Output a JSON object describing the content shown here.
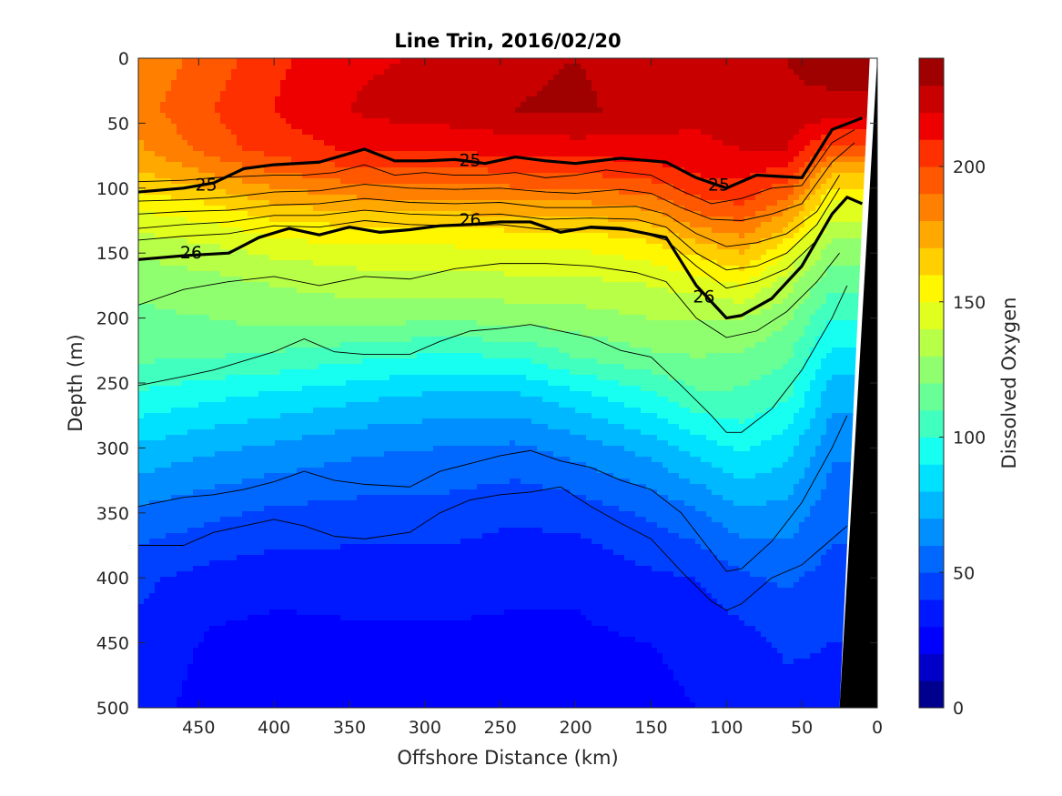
{
  "chart_data": {
    "type": "heatmap",
    "title": "Line Trin, 2016/02/20",
    "xlabel": "Offshore Distance (km)",
    "ylabel": "Depth (m)",
    "colorbar_label": "Dissolved Oxygen",
    "xlim": [
      490,
      0
    ],
    "ylim": [
      500,
      0
    ],
    "x_reversed": true,
    "y_reversed": true,
    "x_ticks": [
      "450",
      "400",
      "350",
      "300",
      "250",
      "200",
      "150",
      "100",
      "50",
      "0"
    ],
    "x_tick_values": [
      450,
      400,
      350,
      300,
      250,
      200,
      150,
      100,
      50,
      0
    ],
    "y_ticks": [
      "0",
      "50",
      "100",
      "150",
      "200",
      "250",
      "300",
      "350",
      "400",
      "450",
      "500"
    ],
    "y_tick_values": [
      0,
      50,
      100,
      150,
      200,
      250,
      300,
      350,
      400,
      450,
      500
    ],
    "colorbar_ticks": [
      "0",
      "50",
      "100",
      "150",
      "200"
    ],
    "colorbar_tick_values": [
      0,
      50,
      100,
      150,
      200
    ],
    "colorbar_range": [
      0,
      240
    ],
    "colorbar_step": 10,
    "colormap": [
      "#00008f",
      "#0000c8",
      "#0000ff",
      "#0018ff",
      "#0040ff",
      "#0068ff",
      "#008fff",
      "#00b8ff",
      "#00e0ff",
      "#17fff0",
      "#40ffbf",
      "#68ff97",
      "#8fff6f",
      "#b8ff47",
      "#e0ff1f",
      "#fff700",
      "#ffcf00",
      "#ffa800",
      "#ff8000",
      "#ff5800",
      "#ff3000",
      "#ef0000",
      "#c80000",
      "#9f0000"
    ],
    "grid": false,
    "oxygen_profiles": {
      "distances_km": [
        490,
        440,
        400,
        340,
        290,
        240,
        200,
        150,
        120,
        90,
        60,
        30
      ],
      "depths_m": [
        0,
        40,
        70,
        90,
        110,
        130,
        150,
        175,
        200,
        230,
        260,
        300,
        350,
        400,
        450,
        500
      ],
      "values": [
        [
          182,
          186,
          178,
          168,
          155,
          142,
          132,
          122,
          118,
          112,
          98,
          78,
          58,
          42,
          38,
          36
        ],
        [
          195,
          200,
          195,
          180,
          162,
          148,
          136,
          126,
          120,
          110,
          92,
          72,
          52,
          36,
          28,
          24
        ],
        [
          208,
          210,
          205,
          188,
          172,
          156,
          142,
          130,
          124,
          108,
          88,
          68,
          48,
          34,
          26,
          22
        ],
        [
          218,
          222,
          212,
          196,
          178,
          160,
          146,
          134,
          124,
          102,
          82,
          62,
          46,
          34,
          28,
          24
        ],
        [
          222,
          225,
          212,
          195,
          178,
          160,
          146,
          134,
          122,
          98,
          78,
          60,
          46,
          34,
          28,
          26
        ],
        [
          228,
          230,
          214,
          198,
          180,
          162,
          148,
          136,
          124,
          100,
          78,
          58,
          42,
          32,
          28,
          26
        ],
        [
          230,
          232,
          215,
          198,
          180,
          162,
          148,
          136,
          126,
          110,
          86,
          64,
          44,
          32,
          28,
          26
        ],
        [
          226,
          226,
          216,
          204,
          186,
          168,
          154,
          140,
          130,
          118,
          98,
          74,
          52,
          38,
          30,
          28
        ],
        [
          222,
          222,
          218,
          210,
          198,
          180,
          162,
          144,
          130,
          120,
          108,
          84,
          58,
          40,
          32,
          30
        ],
        [
          230,
          226,
          220,
          212,
          202,
          186,
          170,
          150,
          130,
          118,
          108,
          92,
          68,
          48,
          36,
          32
        ],
        [
          230,
          228,
          220,
          204,
          188,
          170,
          150,
          134,
          122,
          112,
          102,
          84,
          66,
          52,
          42,
          36
        ],
        [
          236,
          226,
          196,
          168,
          150,
          136,
          124,
          112,
          100,
          86,
          74,
          62,
          54,
          46,
          40,
          36
        ]
      ]
    },
    "isopycnals": [
      {
        "label": "25",
        "x": [
          490,
          460,
          440,
          420,
          400,
          370,
          340,
          320,
          300,
          280,
          260,
          240,
          220,
          200,
          170,
          140,
          120,
          100,
          80,
          50,
          30,
          10
        ],
        "y": [
          103,
          100,
          96,
          85,
          82,
          80,
          70,
          79,
          79,
          78,
          81,
          76,
          79,
          81,
          77,
          80,
          92,
          100,
          90,
          92,
          55,
          46
        ]
      },
      {
        "label": "26",
        "x": [
          490,
          460,
          430,
          410,
          390,
          370,
          350,
          330,
          310,
          290,
          270,
          250,
          230,
          210,
          190,
          170,
          140,
          120,
          100,
          90,
          70,
          50,
          30,
          20,
          10
        ],
        "y": [
          155,
          152,
          150,
          138,
          131,
          136,
          130,
          134,
          132,
          129,
          128,
          126,
          126,
          134,
          130,
          131,
          138,
          175,
          200,
          198,
          185,
          160,
          120,
          107,
          112
        ]
      }
    ],
    "thin_isolines": [
      {
        "x": [
          490,
          460,
          450,
          440,
          420,
          400,
          380,
          360,
          340,
          320,
          300,
          280,
          260,
          240,
          220,
          200,
          180,
          150,
          130,
          110,
          90,
          70,
          50,
          30,
          15
        ],
        "y": [
          95,
          94,
          93,
          92,
          91,
          90,
          90,
          88,
          82,
          90,
          88,
          90,
          90,
          88,
          92,
          90,
          86,
          90,
          102,
          112,
          108,
          100,
          98,
          65,
          55
        ]
      },
      {
        "x": [
          490,
          460,
          430,
          400,
          370,
          340,
          310,
          280,
          250,
          220,
          200,
          170,
          150,
          130,
          110,
          90,
          70,
          50,
          30,
          15
        ],
        "y": [
          110,
          109,
          107,
          103,
          102,
          97,
          100,
          101,
          100,
          103,
          104,
          101,
          104,
          115,
          124,
          125,
          120,
          112,
          80,
          65
        ]
      },
      {
        "x": [
          490,
          460,
          430,
          400,
          370,
          340,
          310,
          280,
          250,
          220,
          190,
          160,
          140,
          120,
          100,
          80,
          60,
          40,
          25
        ],
        "y": [
          120,
          118,
          117,
          113,
          112,
          108,
          111,
          112,
          111,
          115,
          115,
          114,
          120,
          135,
          145,
          142,
          135,
          118,
          90
        ]
      },
      {
        "x": [
          490,
          460,
          430,
          400,
          370,
          340,
          310,
          280,
          250,
          220,
          190,
          160,
          140,
          120,
          100,
          80,
          60,
          40,
          25
        ],
        "y": [
          131,
          128,
          126,
          121,
          121,
          117,
          120,
          121,
          120,
          124,
          123,
          124,
          130,
          150,
          163,
          160,
          150,
          128,
          100
        ]
      },
      {
        "x": [
          490,
          460,
          430,
          400,
          370,
          340,
          310,
          280,
          250,
          220,
          190,
          160,
          140,
          120,
          100,
          80,
          60,
          40,
          25
        ],
        "y": [
          140,
          137,
          135,
          129,
          130,
          125,
          128,
          129,
          128,
          132,
          131,
          133,
          140,
          160,
          177,
          172,
          162,
          140,
          112
        ]
      },
      {
        "x": [
          490,
          460,
          430,
          400,
          370,
          340,
          310,
          280,
          250,
          220,
          190,
          160,
          140,
          120,
          100,
          80,
          60,
          40,
          25
        ],
        "y": [
          190,
          178,
          172,
          168,
          175,
          168,
          170,
          162,
          158,
          158,
          160,
          165,
          172,
          200,
          215,
          210,
          195,
          172,
          150
        ]
      },
      {
        "x": [
          490,
          460,
          440,
          420,
          400,
          380,
          360,
          340,
          310,
          290,
          270,
          250,
          230,
          210,
          190,
          170,
          150,
          130,
          110,
          100,
          90,
          70,
          50,
          30,
          20
        ],
        "y": [
          252,
          245,
          240,
          233,
          226,
          216,
          226,
          228,
          228,
          218,
          210,
          208,
          205,
          210,
          215,
          225,
          230,
          252,
          275,
          288,
          288,
          270,
          240,
          200,
          175
        ]
      },
      {
        "x": [
          490,
          460,
          440,
          420,
          400,
          380,
          360,
          340,
          310,
          290,
          270,
          250,
          230,
          210,
          190,
          170,
          150,
          130,
          110,
          100,
          90,
          70,
          50,
          30,
          20
        ],
        "y": [
          345,
          338,
          336,
          332,
          326,
          318,
          325,
          328,
          330,
          318,
          312,
          306,
          302,
          310,
          315,
          325,
          332,
          350,
          380,
          395,
          393,
          372,
          342,
          300,
          275
        ]
      },
      {
        "x": [
          490,
          460,
          440,
          420,
          400,
          380,
          360,
          340,
          310,
          290,
          270,
          250,
          230,
          210,
          190,
          170,
          150,
          130,
          110,
          100,
          90,
          70,
          50,
          30,
          20
        ],
        "y": [
          375,
          375,
          365,
          360,
          355,
          360,
          368,
          370,
          365,
          350,
          340,
          336,
          334,
          330,
          345,
          358,
          370,
          395,
          418,
          425,
          420,
          400,
          390,
          370,
          360
        ]
      }
    ],
    "contour_labels": [
      {
        "text": "25",
        "x": 270,
        "y": 78
      },
      {
        "text": "25",
        "x": 445,
        "y": 97
      },
      {
        "text": "25",
        "x": 105,
        "y": 97
      },
      {
        "text": "26",
        "x": 270,
        "y": 124
      },
      {
        "text": "26",
        "x": 455,
        "y": 149
      },
      {
        "text": "26",
        "x": 115,
        "y": 183
      }
    ],
    "bathymetry": {
      "x": [
        0,
        0,
        25,
        5
      ],
      "y": [
        0,
        500,
        500,
        0
      ],
      "color": "#000000"
    }
  }
}
